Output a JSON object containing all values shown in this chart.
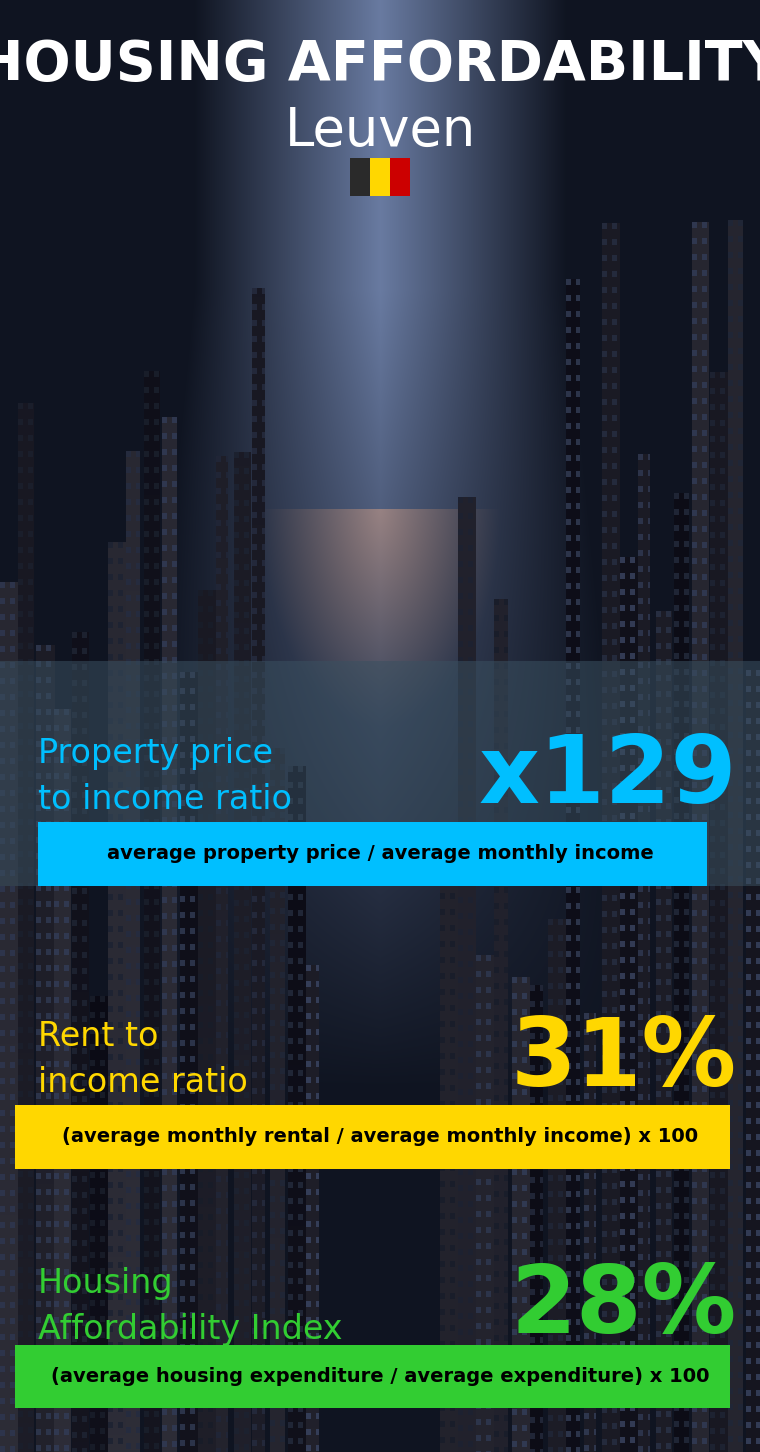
{
  "title_line1": "HOUSING AFFORDABILITY",
  "title_line2": "Leuven",
  "bg_color": "#0d1117",
  "title_color": "#ffffff",
  "city_color": "#ffffff",
  "section1_label": "Property price\nto income ratio",
  "section1_value": "x129",
  "section1_label_color": "#00bfff",
  "section1_value_color": "#00bfff",
  "section1_formula": "average property price / average monthly income",
  "section1_formula_bg": "#00bfff",
  "section1_formula_color": "#000000",
  "section2_label": "Rent to\nincome ratio",
  "section2_value": "31%",
  "section2_label_color": "#ffd700",
  "section2_value_color": "#ffd700",
  "section2_formula": "(average monthly rental / average monthly income) x 100",
  "section2_formula_bg": "#ffd700",
  "section2_formula_color": "#000000",
  "section3_label": "Housing\nAffordability Index",
  "section3_value": "28%",
  "section3_label_color": "#32cd32",
  "section3_value_color": "#32cd32",
  "section3_formula": "(average housing expenditure / average expenditure) x 100",
  "section3_formula_bg": "#32cd32",
  "section3_formula_color": "#000000",
  "flag_colors": [
    "#2a2a2a",
    "#FFD700",
    "#CC0000"
  ],
  "figwidth": 7.6,
  "figheight": 14.52
}
